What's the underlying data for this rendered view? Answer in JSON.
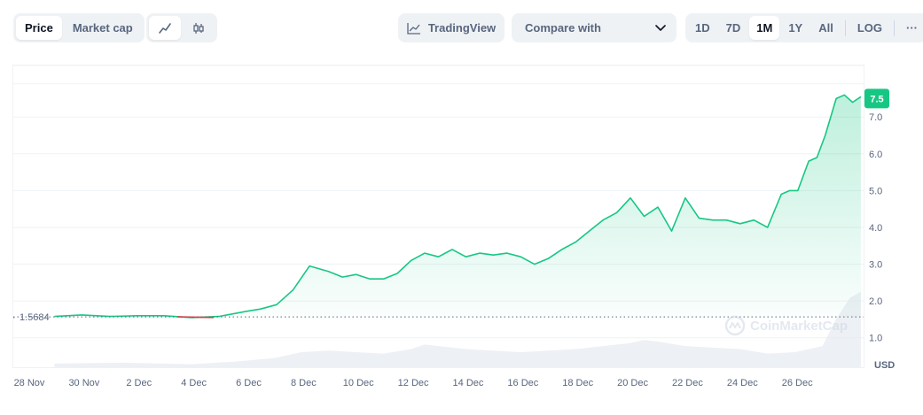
{
  "toolbar": {
    "metric_tabs": [
      {
        "label": "Price",
        "active": true
      },
      {
        "label": "Market cap",
        "active": false
      }
    ],
    "chart_types": [
      {
        "icon": "line-chart-icon",
        "active": true
      },
      {
        "icon": "candlestick-icon",
        "active": false
      }
    ],
    "tradingview_label": "TradingView",
    "compare_label": "Compare with",
    "ranges": [
      {
        "label": "1D",
        "active": false
      },
      {
        "label": "7D",
        "active": false
      },
      {
        "label": "1M",
        "active": true
      },
      {
        "label": "1Y",
        "active": false
      },
      {
        "label": "All",
        "active": false
      }
    ],
    "log_label": "LOG",
    "more_label": "···"
  },
  "chart_data": {
    "type": "line",
    "title": "",
    "xlabel": "",
    "ylabel": "USD",
    "currency_label": "USD",
    "watermark": "CoinMarketCap",
    "x_ticks": [
      "28 Nov",
      "30 Nov",
      "2 Dec",
      "4 Dec",
      "6 Dec",
      "8 Dec",
      "10 Dec",
      "12 Dec",
      "14 Dec",
      "16 Dec",
      "18 Dec",
      "20 Dec",
      "22 Dec",
      "24 Dec",
      "26 Dec"
    ],
    "y_ticks": [
      "1.0",
      "2.0",
      "3.0",
      "4.0",
      "5.0",
      "6.0",
      "7.0"
    ],
    "ylim": [
      0.2,
      8.4
    ],
    "xlim": [
      0,
      31
    ],
    "open_price": 1.5684,
    "open_price_label": "1.5684",
    "current_price": 7.5,
    "current_price_label": "7.5",
    "grid": true,
    "colors": {
      "up": "#16c784",
      "down": "#ea3943",
      "grid": "#eff2f5",
      "label_bg": "#16c784"
    },
    "series": [
      {
        "x": [
          1.5,
          2.5,
          3.5,
          4.5,
          5.5,
          6.5,
          7.5,
          8.5,
          9.0,
          9.6,
          10.2,
          10.8,
          11.5,
          12.0,
          12.5,
          13.0,
          13.5,
          14.0,
          14.5,
          15.0,
          15.5,
          16.0,
          16.5,
          17.0,
          17.5,
          18.0,
          18.5,
          19.0,
          19.5,
          20.0,
          20.5,
          21.0,
          21.5,
          22.0,
          22.5,
          23.0,
          23.5,
          24.0,
          24.5,
          25.0,
          25.5,
          26.0,
          26.5,
          27.0,
          27.5,
          28.0,
          28.3,
          28.6,
          29.0,
          29.3,
          29.6,
          30.0,
          30.3,
          30.6,
          30.9
        ],
        "y": [
          1.58,
          1.62,
          1.58,
          1.6,
          1.6,
          1.55,
          1.58,
          1.72,
          1.78,
          1.9,
          2.3,
          2.95,
          2.8,
          2.65,
          2.72,
          2.6,
          2.6,
          2.75,
          3.1,
          3.3,
          3.2,
          3.4,
          3.2,
          3.3,
          3.25,
          3.3,
          3.2,
          3.0,
          3.15,
          3.4,
          3.6,
          3.9,
          4.2,
          4.4,
          4.8,
          4.3,
          4.55,
          3.9,
          4.8,
          4.25,
          4.2,
          4.2,
          4.1,
          4.2,
          4.0,
          4.9,
          5.0,
          5.0,
          5.8,
          5.9,
          6.5,
          7.5,
          7.6,
          7.4,
          7.55
        ]
      }
    ],
    "down_segment": {
      "from": 6.0,
      "to": 7.3
    },
    "volume_x": [
      1.5,
      4.0,
      6.5,
      8.0,
      9.5,
      10.5,
      11.5,
      12.5,
      13.5,
      14.5,
      15.0,
      15.5,
      16.5,
      17.5,
      18.5,
      19.5,
      20.5,
      21.5,
      22.5,
      23.0,
      23.5,
      24.5,
      25.5,
      26.5,
      27.5,
      28.5,
      29.5,
      30.0,
      30.5,
      30.9
    ],
    "volume": [
      0.12,
      0.15,
      0.1,
      0.18,
      0.3,
      0.5,
      0.55,
      0.5,
      0.45,
      0.6,
      0.75,
      0.7,
      0.6,
      0.55,
      0.5,
      0.55,
      0.6,
      0.7,
      0.8,
      0.9,
      0.85,
      0.7,
      0.65,
      0.6,
      0.45,
      0.5,
      0.7,
      1.6,
      2.3,
      2.5
    ]
  }
}
